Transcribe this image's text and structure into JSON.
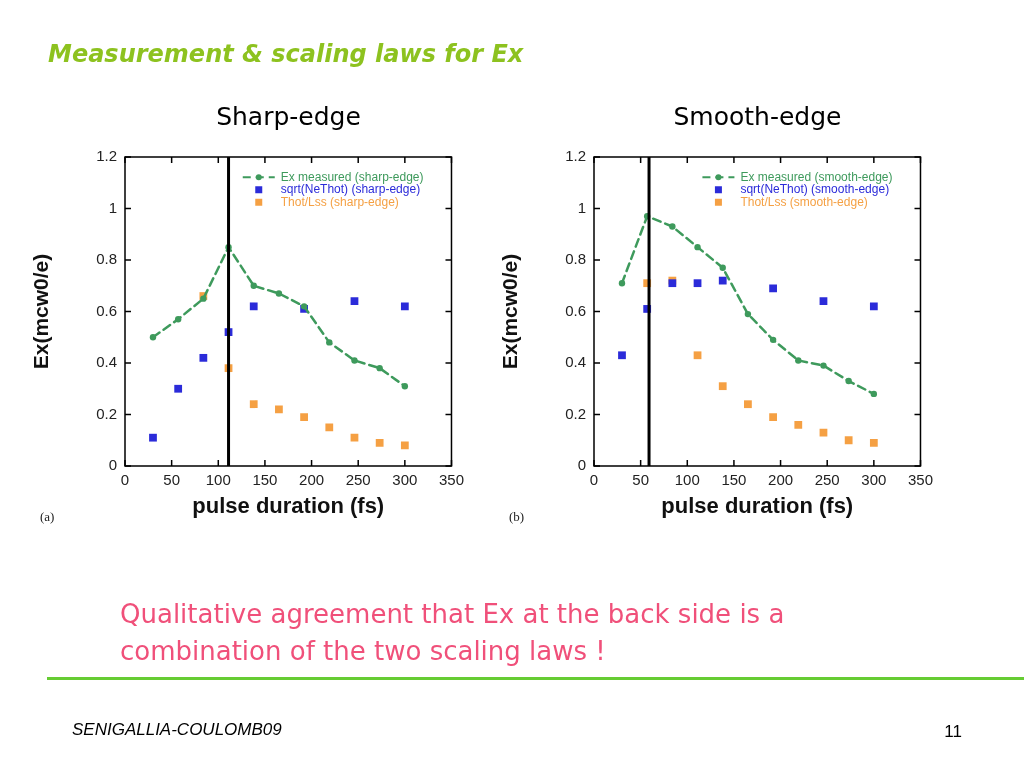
{
  "chart_data": [
    {
      "type": "other",
      "title": "Measurement & scaling laws for Ex"
    },
    {
      "type": "line",
      "title": "Sharp-edge",
      "xlabel": "pulse duration (fs)",
      "ylabel": "Ex(mcw0/e)",
      "x": [
        30,
        57,
        84,
        111,
        138,
        165,
        192,
        219,
        246,
        273,
        300
      ],
      "series": [
        {
          "name": "Ex measured (sharp-edge)",
          "type": "line",
          "color": "#3e9a5c",
          "marker": "circle",
          "line_style": "dashed",
          "values": [
            0.5,
            0.57,
            0.65,
            0.85,
            0.7,
            0.67,
            0.62,
            0.48,
            0.41,
            0.38,
            0.31
          ]
        },
        {
          "name": "sqrt(NeThot) (sharp-edge)",
          "type": "scatter",
          "color": "#2b2bd9",
          "marker": "square",
          "values": [
            0.11,
            0.3,
            0.42,
            0.52,
            0.62,
            null,
            0.61,
            null,
            0.64,
            null,
            0.62
          ]
        },
        {
          "name": "Thot/Lss (sharp-edge)",
          "type": "scatter",
          "color": "#f5a043",
          "marker": "square",
          "values": [
            null,
            null,
            0.66,
            0.38,
            0.24,
            0.22,
            0.19,
            0.15,
            0.11,
            0.09,
            0.08
          ]
        }
      ],
      "xlim": [
        0,
        350
      ],
      "xticks": [
        0,
        50,
        100,
        150,
        200,
        250,
        300,
        350
      ],
      "ylim": [
        0,
        1.2
      ],
      "yticks": [
        0,
        0.2,
        0.4,
        0.6,
        0.8,
        1,
        1.2
      ],
      "ref_lines": [
        {
          "axis": "x",
          "value": 111,
          "color": "#000000"
        }
      ],
      "legend": "top right",
      "annotations": [
        "(a)"
      ]
    },
    {
      "type": "line",
      "title": "Smooth-edge",
      "xlabel": "pulse duration (fs)",
      "ylabel": "Ex(mcw0/e)",
      "x": [
        30,
        57,
        84,
        111,
        138,
        165,
        192,
        219,
        246,
        273,
        300
      ],
      "series": [
        {
          "name": "Ex measured (smooth-edge)",
          "type": "line",
          "color": "#3e9a5c",
          "marker": "circle",
          "line_style": "dashed",
          "values": [
            0.71,
            0.97,
            0.93,
            0.85,
            0.77,
            0.59,
            0.49,
            0.41,
            0.39,
            0.33,
            0.28
          ]
        },
        {
          "name": "sqrt(NeThot) (smooth-edge)",
          "type": "scatter",
          "color": "#2b2bd9",
          "marker": "square",
          "values": [
            0.43,
            0.61,
            0.71,
            0.71,
            0.72,
            null,
            0.69,
            null,
            0.64,
            null,
            0.62
          ]
        },
        {
          "name": "Thot/Lss (smooth-edge)",
          "type": "scatter",
          "color": "#f5a043",
          "marker": "square",
          "values": [
            null,
            0.71,
            0.72,
            0.43,
            0.31,
            0.24,
            0.19,
            0.16,
            0.13,
            0.1,
            0.09
          ]
        }
      ],
      "xlim": [
        0,
        350
      ],
      "xticks": [
        0,
        50,
        100,
        150,
        200,
        250,
        300,
        350
      ],
      "ylim": [
        0,
        1.2
      ],
      "yticks": [
        0,
        0.2,
        0.4,
        0.6,
        0.8,
        1,
        1.2
      ],
      "ref_lines": [
        {
          "axis": "x",
          "value": 59,
          "color": "#000000"
        }
      ],
      "legend": "top right",
      "annotations": [
        "(b)"
      ]
    },
    {
      "type": "other",
      "annotations": [
        "Qualitative agreement that Ex at the back side is a combination of the two scaling laws !",
        "SENIGALLIA-COULOMB09",
        "11"
      ]
    }
  ]
}
